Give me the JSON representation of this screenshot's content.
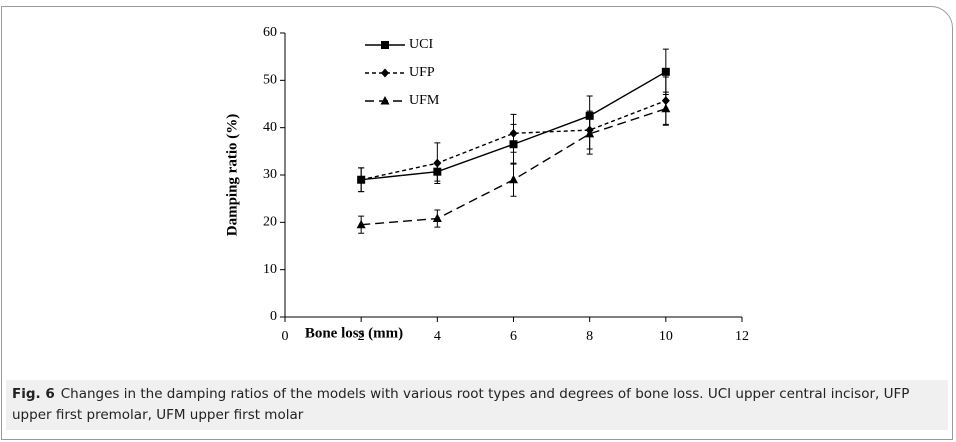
{
  "chart_data": {
    "type": "line",
    "ylabel": "Damping ratio (%)",
    "xlabel": "Bone loss (mm)",
    "x": [
      2,
      4,
      6,
      8,
      10
    ],
    "series": [
      {
        "name": "UCI",
        "color": "#000000",
        "line_style": "solid",
        "marker": "square",
        "values": [
          29,
          30.7,
          36.5,
          42.5,
          51.8
        ],
        "errors": [
          2.5,
          2,
          4.2,
          4.2,
          4.8
        ]
      },
      {
        "name": "UFP",
        "color": "#000000",
        "line_style": "dotted",
        "marker": "diamond",
        "values": [
          29,
          32.5,
          38.8,
          39.5,
          45.7
        ],
        "errors": [
          2.5,
          4.3,
          4,
          4,
          5
        ]
      },
      {
        "name": "UFM",
        "color": "#000000",
        "line_style": "dashed",
        "marker": "triangle",
        "values": [
          19.5,
          20.8,
          29,
          38.7,
          44
        ],
        "errors": [
          1.8,
          1.8,
          3.5,
          4.3,
          3.5
        ]
      }
    ],
    "xlim": [
      0,
      12
    ],
    "xticks": [
      0,
      2,
      4,
      6,
      8,
      10,
      12
    ],
    "ylim": [
      0,
      60
    ],
    "yticks": [
      0,
      10,
      20,
      30,
      40,
      50,
      60
    ],
    "grid": false,
    "legend": "upper left"
  },
  "caption": {
    "label": "Fig. 6",
    "text": "Changes in the damping ratios of the models with various root types and degrees of bone loss. UCI upper central incisor, UFP upper first premolar, UFM upper first molar"
  }
}
